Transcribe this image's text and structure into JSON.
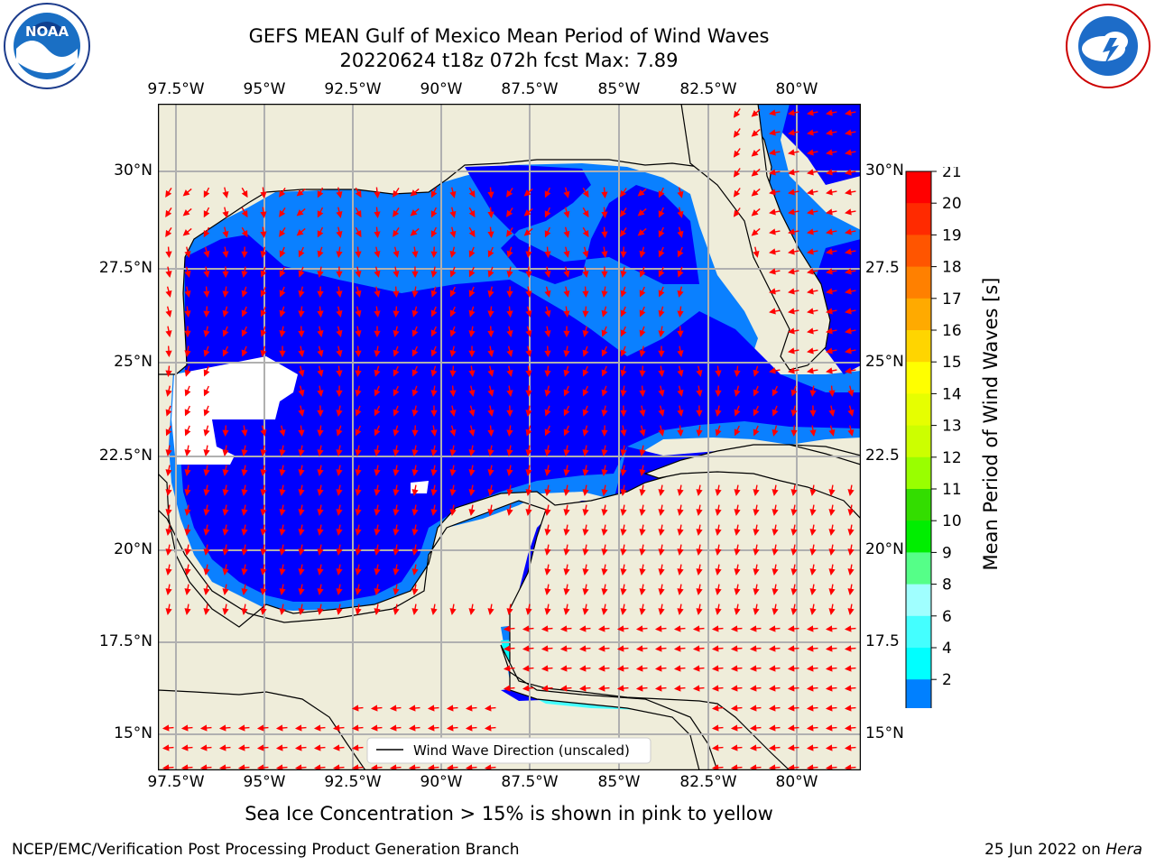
{
  "title_line1": "GEFS MEAN Gulf of Mexico Mean Period of Wind Waves",
  "title_line2": "20220624 t18z 072h fcst   Max: 7.89",
  "lon_labels": [
    "97.5°W",
    "95°W",
    "92.5°W",
    "90°W",
    "87.5°W",
    "85°W",
    "82.5°W",
    "80°W"
  ],
  "lat_labels_left": [
    "30°N",
    "27.5°N",
    "25°N",
    "22.5°N",
    "20°N",
    "17.5°N",
    "15°N"
  ],
  "lat_labels_right": [
    "30°N",
    "27.5",
    "25°N",
    "22.5",
    "20°N",
    "17.5",
    "15°N"
  ],
  "legend_text": "Wind Wave Direction (unscaled)",
  "colorbar": {
    "label": "Mean Period of Wind Waves [s]",
    "ticks": [
      "21",
      "20",
      "19",
      "18",
      "17",
      "16",
      "15",
      "14",
      "13",
      "12",
      "11",
      "10",
      "9",
      "8",
      "6",
      "4",
      "2"
    ],
    "colors": [
      "#ff0000",
      "#ff2a00",
      "#ff5500",
      "#ff8000",
      "#ffaa00",
      "#ffd500",
      "#ffff00",
      "#e6ff00",
      "#ccff00",
      "#99ff00",
      "#33dd00",
      "#00ee00",
      "#55ff88",
      "#a0ffff",
      "#44ffff",
      "#00ffff",
      "#0080ff"
    ]
  },
  "footer_note": "Sea Ice Concentration > 15% is shown in pink to yellow",
  "credit": "NCEP/EMC/Verification Post Processing Product Generation Branch",
  "date_text": "25 Jun 2022 on ",
  "date_host": "Hera",
  "logos": {
    "left": "noaa-logo",
    "right": "nws-logo"
  },
  "colors": {
    "land": "#efedda",
    "deep": "#0000ff",
    "mid": "#0a80ff",
    "light": "#44ffff",
    "arrow": "#ff0000"
  }
}
